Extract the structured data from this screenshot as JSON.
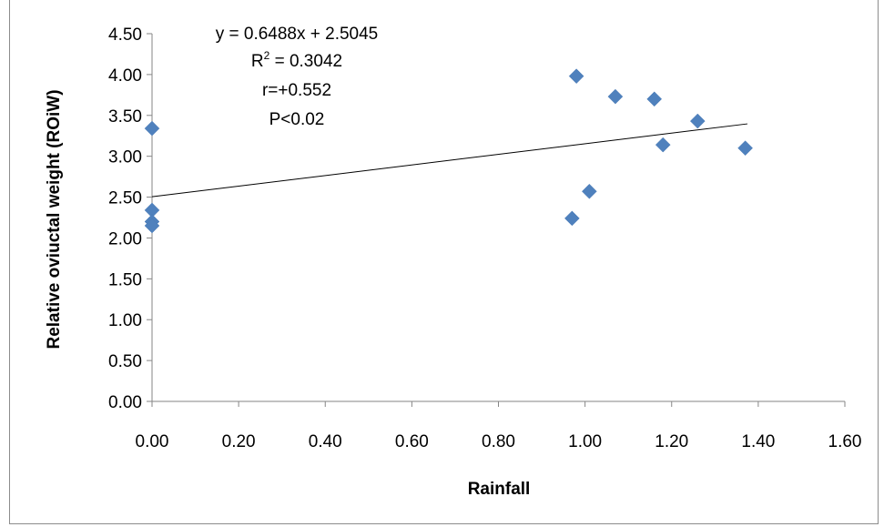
{
  "chart_data": {
    "type": "scatter",
    "xlabel": "Rainfall",
    "ylabel": "Relative oviuctal weight (ROiW)",
    "xlim": [
      0,
      1.6
    ],
    "ylim": [
      0,
      4.5
    ],
    "x_ticks": [
      "0.00",
      "0.20",
      "0.40",
      "0.60",
      "0.80",
      "1.00",
      "1.20",
      "1.40",
      "1.60"
    ],
    "y_ticks": [
      "0.00",
      "0.50",
      "1.00",
      "1.50",
      "2.00",
      "2.50",
      "3.00",
      "3.50",
      "4.00",
      "4.50"
    ],
    "grid": false,
    "marker_color": "#4f81bd",
    "points": [
      {
        "x": 0.0,
        "y": 3.34
      },
      {
        "x": 0.0,
        "y": 2.34
      },
      {
        "x": 0.0,
        "y": 2.2
      },
      {
        "x": 0.0,
        "y": 2.15
      },
      {
        "x": 0.97,
        "y": 2.24
      },
      {
        "x": 0.98,
        "y": 3.98
      },
      {
        "x": 1.01,
        "y": 2.57
      },
      {
        "x": 1.07,
        "y": 3.73
      },
      {
        "x": 1.16,
        "y": 3.7
      },
      {
        "x": 1.18,
        "y": 3.14
      },
      {
        "x": 1.26,
        "y": 3.43
      },
      {
        "x": 1.37,
        "y": 3.1
      }
    ],
    "trendline": {
      "slope": 0.6488,
      "intercept": 2.5045,
      "x_range": [
        0,
        1.375
      ],
      "equation_text": "y = 0.6488x + 2.5045",
      "r2_prefix": "R",
      "r2_sup": "2",
      "r2_rest": " = 0.3042",
      "r_text": "r=+0.552",
      "p_text": "P<0.02"
    }
  }
}
